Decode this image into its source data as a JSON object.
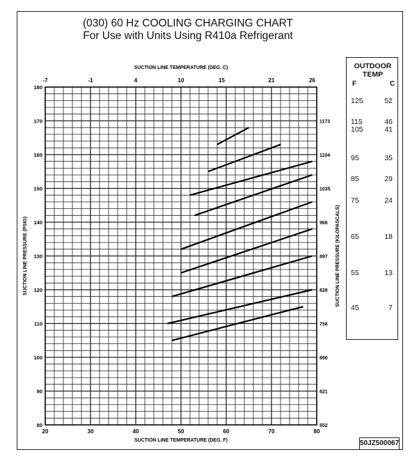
{
  "chart_data": {
    "type": "line",
    "title": "(030) 60 Hz COOLING CHARGING CHART",
    "subtitle": "For Use with Units Using R410a Refrigerant",
    "xlabel": "SUCTION LINE TEMPERATURE (DEG. F)",
    "x2label": "SUCTION LINE TEMPERATURE (DEG. C)",
    "ylabel": "SUCTION LINE PRESSURE (PSIG)",
    "y2label": "SUCTION LINE PRESSURE (KILOPASCALS)",
    "xlim": [
      20,
      80
    ],
    "ylim": [
      80,
      180
    ],
    "xticks": [
      "20",
      "30",
      "40",
      "50",
      "60",
      "70",
      "80"
    ],
    "yticks": [
      "80",
      "90",
      "100",
      "110",
      "120",
      "130",
      "140",
      "150",
      "160",
      "170",
      "180"
    ],
    "x2ticks": [
      {
        "label": "-7",
        "at": 20
      },
      {
        "label": "-1",
        "at": 30
      },
      {
        "label": "4",
        "at": 40
      },
      {
        "label": "10",
        "at": 50
      },
      {
        "label": "15",
        "at": 59
      },
      {
        "label": "21",
        "at": 70
      },
      {
        "label": "26",
        "at": 79
      }
    ],
    "y2ticks": [
      {
        "label": "552",
        "at": 80
      },
      {
        "label": "621",
        "at": 90
      },
      {
        "label": "690",
        "at": 100
      },
      {
        "label": "758",
        "at": 110
      },
      {
        "label": "828",
        "at": 120
      },
      {
        "label": "897",
        "at": 130
      },
      {
        "label": "966",
        "at": 140
      },
      {
        "label": "1035",
        "at": 150
      },
      {
        "label": "1104",
        "at": 160
      },
      {
        "label": "1173",
        "at": 170
      }
    ],
    "grid": true,
    "series": [
      {
        "x": [
          58,
          65
        ],
        "y": [
          163,
          168
        ]
      },
      {
        "x": [
          56,
          72
        ],
        "y": [
          155,
          163
        ]
      },
      {
        "x": [
          52,
          79
        ],
        "y": [
          148,
          158
        ]
      },
      {
        "x": [
          53,
          79
        ],
        "y": [
          142,
          154
        ]
      },
      {
        "x": [
          50,
          79
        ],
        "y": [
          132,
          146
        ]
      },
      {
        "x": [
          50,
          79
        ],
        "y": [
          125,
          138
        ]
      },
      {
        "x": [
          48,
          79
        ],
        "y": [
          118,
          130
        ]
      },
      {
        "x": [
          47,
          79
        ],
        "y": [
          110,
          120
        ]
      },
      {
        "x": [
          48,
          77
        ],
        "y": [
          105,
          115
        ]
      }
    ]
  },
  "legend": {
    "title_line1": "OUTDOOR",
    "title_line2": "TEMP",
    "col_f": "F",
    "col_c": "C",
    "rows": [
      {
        "f": "125",
        "c": "52"
      },
      {
        "f": "115",
        "c": "46"
      },
      {
        "f": "105",
        "c": "41"
      },
      {
        "f": "95",
        "c": "35"
      },
      {
        "f": "85",
        "c": "29"
      },
      {
        "f": "75",
        "c": "24"
      },
      {
        "f": "65",
        "c": "18"
      },
      {
        "f": "55",
        "c": "13"
      },
      {
        "f": "45",
        "c": "7"
      }
    ]
  },
  "figure_code": "50JZ500067"
}
